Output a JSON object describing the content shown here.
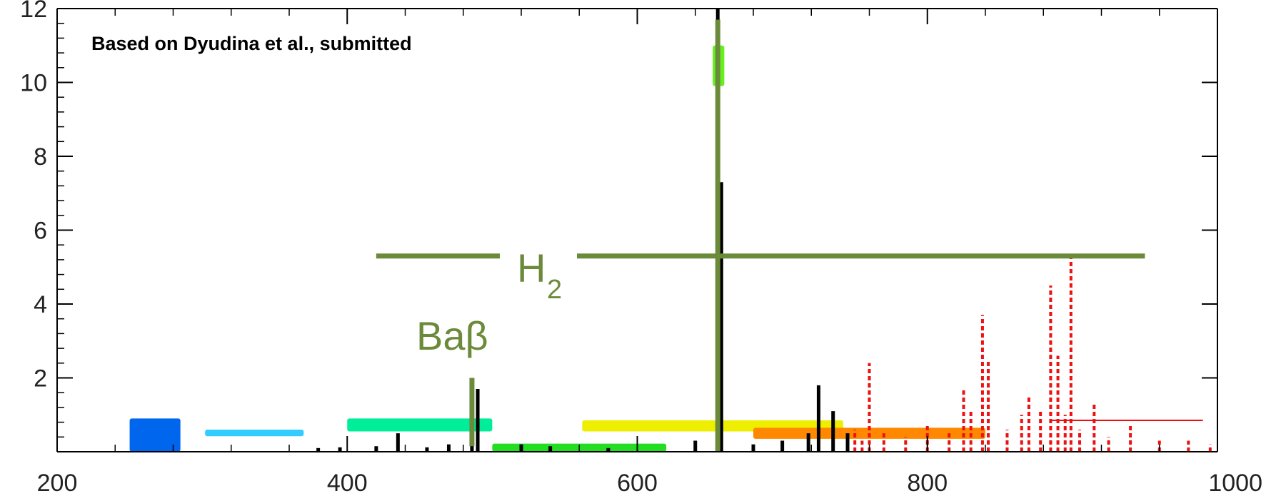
{
  "chart_data": {
    "type": "bar",
    "title": "",
    "xlabel": "",
    "ylabel": "",
    "xlim": [
      200,
      1000
    ],
    "ylim": [
      0,
      12
    ],
    "x_ticks": [
      200,
      400,
      600,
      800,
      1000
    ],
    "x_tick_labels": [
      "200",
      "400",
      "600",
      "800",
      "1000"
    ],
    "y_ticks": [
      2,
      4,
      6,
      8,
      10,
      12
    ],
    "y_tick_labels": [
      "2",
      "4",
      "6",
      "8",
      "10",
      "12"
    ],
    "credit": "Based on Dyudina et al., submitted",
    "annotations": [
      {
        "text": "H",
        "subscript": "2",
        "color": "#6b8a3a"
      },
      {
        "text": "Baβ",
        "color": "#6b8a3a"
      }
    ],
    "series": [
      {
        "color": "#000000",
        "style": "solid",
        "values": [
          {
            "x": 380,
            "y": 0.1
          },
          {
            "x": 395,
            "y": 0.12
          },
          {
            "x": 420,
            "y": 0.15
          },
          {
            "x": 435,
            "y": 0.5
          },
          {
            "x": 455,
            "y": 0.12
          },
          {
            "x": 470,
            "y": 0.2
          },
          {
            "x": 486,
            "y": 1.9
          },
          {
            "x": 490,
            "y": 1.7
          },
          {
            "x": 520,
            "y": 0.2
          },
          {
            "x": 540,
            "y": 0.15
          },
          {
            "x": 580,
            "y": 0.1
          },
          {
            "x": 640,
            "y": 0.3
          },
          {
            "x": 655.5,
            "y": 12
          },
          {
            "x": 658,
            "y": 7.3
          },
          {
            "x": 680,
            "y": 0.2
          },
          {
            "x": 700,
            "y": 0.3
          },
          {
            "x": 718,
            "y": 0.5
          },
          {
            "x": 725,
            "y": 1.8
          },
          {
            "x": 735,
            "y": 1.1
          },
          {
            "x": 745,
            "y": 0.5
          }
        ]
      },
      {
        "color": "#ee1111",
        "style": "dashed",
        "values": [
          {
            "x": 750,
            "y": 0.6
          },
          {
            "x": 755,
            "y": 0.3
          },
          {
            "x": 760,
            "y": 2.4
          },
          {
            "x": 770,
            "y": 0.5
          },
          {
            "x": 785,
            "y": 0.4
          },
          {
            "x": 800,
            "y": 0.7
          },
          {
            "x": 815,
            "y": 0.5
          },
          {
            "x": 825,
            "y": 1.7
          },
          {
            "x": 830,
            "y": 1.1
          },
          {
            "x": 838,
            "y": 3.7
          },
          {
            "x": 842,
            "y": 2.5
          },
          {
            "x": 855,
            "y": 0.6
          },
          {
            "x": 865,
            "y": 1.0
          },
          {
            "x": 870,
            "y": 1.5
          },
          {
            "x": 878,
            "y": 1.1
          },
          {
            "x": 885,
            "y": 4.5
          },
          {
            "x": 890,
            "y": 2.6
          },
          {
            "x": 895,
            "y": 1.0
          },
          {
            "x": 899,
            "y": 5.4
          },
          {
            "x": 905,
            "y": 0.6
          },
          {
            "x": 915,
            "y": 1.3
          },
          {
            "x": 925,
            "y": 0.4
          },
          {
            "x": 940,
            "y": 0.7
          },
          {
            "x": 960,
            "y": 0.3
          },
          {
            "x": 980,
            "y": 0.3
          },
          {
            "x": 995,
            "y": 0.2
          }
        ]
      }
    ],
    "filter_bands": [
      {
        "color": "#0066ee",
        "x0": 250,
        "x1": 285,
        "y0": 0.0,
        "y1": 0.9
      },
      {
        "color": "#33ccff",
        "x0": 302,
        "x1": 370,
        "y0": 0.42,
        "y1": 0.6
      },
      {
        "color": "#00ee99",
        "x0": 400,
        "x1": 500,
        "y0": 0.55,
        "y1": 0.9
      },
      {
        "color": "#22dd22",
        "x0": 500,
        "x1": 620,
        "y0": 0.0,
        "y1": 0.22
      },
      {
        "color": "#eeee00",
        "x0": 562,
        "x1": 742,
        "y0": 0.55,
        "y1": 0.85
      },
      {
        "color": "#ff8800",
        "x0": 680,
        "x1": 840,
        "y0": 0.35,
        "y1": 0.65
      },
      {
        "color": "#66ee22",
        "x0": 652,
        "x1": 660,
        "y0": 9.9,
        "y1": 11.0
      }
    ],
    "reference_lines": [
      {
        "color": "#6b8a3a",
        "orientation": "vertical",
        "x": 655.5,
        "y0": 0,
        "y1": 11.7
      },
      {
        "color": "#6b8a3a",
        "orientation": "vertical",
        "x": 486,
        "y0": 0.15,
        "y1": 2.0
      },
      {
        "color": "#6b8a3a",
        "orientation": "horizontal",
        "y": 5.3,
        "x0": 420,
        "x1": 950
      },
      {
        "color": "#ee1111",
        "orientation": "horizontal",
        "y": 0.85,
        "x0": 885,
        "x1": 990
      }
    ]
  }
}
